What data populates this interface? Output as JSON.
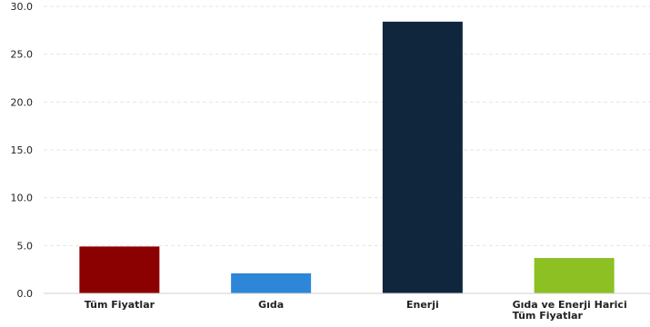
{
  "chart_data": {
    "type": "bar",
    "categories": [
      [
        "Tüm Fiyatlar"
      ],
      [
        "Gıda"
      ],
      [
        "Enerji"
      ],
      [
        "Gıda ve Enerji Harici",
        "Tüm Fiyatlar"
      ]
    ],
    "values": [
      4.9,
      2.1,
      28.4,
      3.7
    ],
    "colors": [
      "#8b0000",
      "#2e86d8",
      "#0f263d",
      "#8cc023"
    ],
    "ylim": [
      0,
      30
    ],
    "yticks": [
      0,
      5,
      10,
      15,
      20,
      25,
      30
    ],
    "ytick_labels": [
      "0.0",
      "5.0",
      "10.0",
      "15.0",
      "20.0",
      "25.0",
      "30.0"
    ],
    "grid": true,
    "title": "",
    "xlabel": "",
    "ylabel": ""
  }
}
